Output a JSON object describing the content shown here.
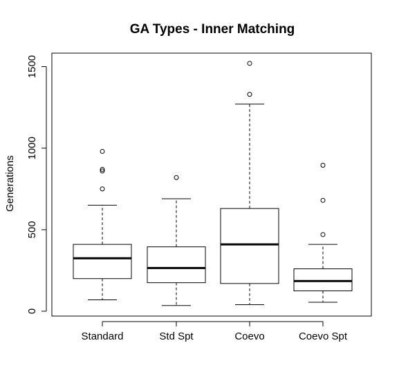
{
  "chart_data": {
    "type": "box",
    "title": "GA Types - Inner Matching",
    "xlabel": "",
    "ylabel": "Generations",
    "ylim": [
      0,
      1600
    ],
    "y_ticks": [
      0,
      500,
      1000,
      1500
    ],
    "y_tick_labels": [
      "0",
      "500",
      "1000",
      "1500"
    ],
    "grid": false,
    "legend": "none",
    "categories": [
      "Standard",
      "Std Spt",
      "Coevo",
      "Coevo Spt"
    ],
    "boxes": [
      {
        "category": "Standard",
        "whisker_low": 70,
        "q1": 200,
        "median": 325,
        "q3": 410,
        "whisker_high": 650,
        "outliers": [
          750,
          860,
          870,
          980
        ]
      },
      {
        "category": "Std Spt",
        "whisker_low": 35,
        "q1": 175,
        "median": 265,
        "q3": 395,
        "whisker_high": 690,
        "outliers": [
          820
        ]
      },
      {
        "category": "Coevo",
        "whisker_low": 40,
        "q1": 170,
        "median": 410,
        "q3": 630,
        "whisker_high": 1270,
        "outliers": [
          1330,
          1520
        ]
      },
      {
        "category": "Coevo Spt",
        "whisker_low": 55,
        "q1": 125,
        "median": 185,
        "q3": 260,
        "whisker_high": 410,
        "outliers": [
          470,
          680,
          895
        ]
      }
    ]
  }
}
